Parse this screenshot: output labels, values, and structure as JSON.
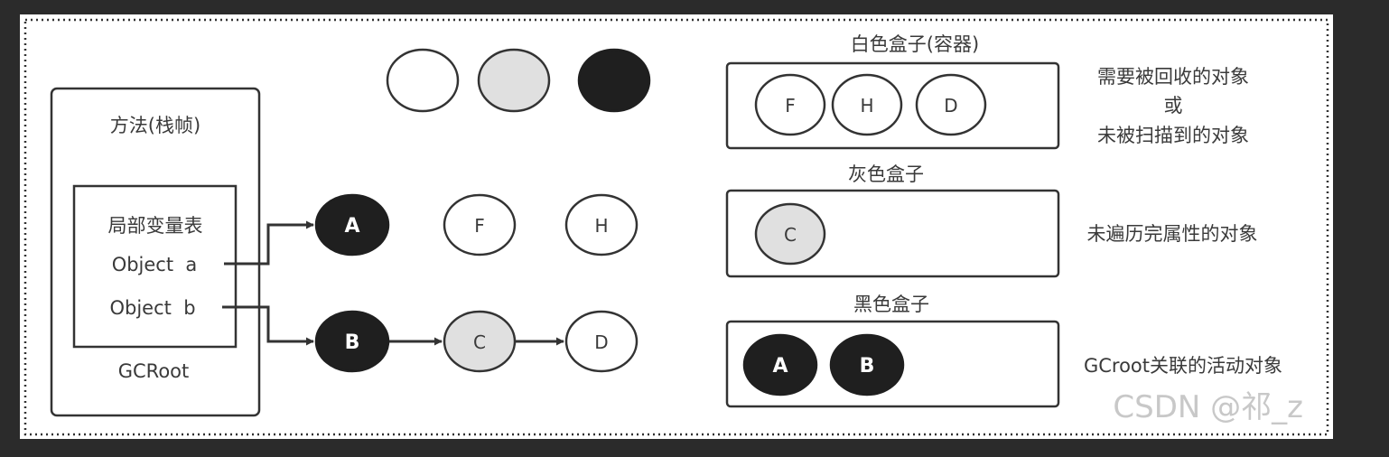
{
  "legend_circles": [
    "white",
    "gray",
    "black"
  ],
  "method_box": {
    "title": "方法(栈帧)",
    "local_table": {
      "title": "局部变量表",
      "entries": [
        "Object  a",
        "Object  b"
      ]
    },
    "footer": "GCRoot"
  },
  "nodes": {
    "A": "A",
    "B": "B",
    "C": "C",
    "D": "D",
    "F": "F",
    "H": "H"
  },
  "white_box": {
    "title": "白色盒子(容器)",
    "items": [
      "F",
      "H",
      "D"
    ],
    "description": [
      "需要被回收的对象",
      "或",
      "未被扫描到的对象"
    ]
  },
  "gray_box": {
    "title": "灰色盒子",
    "items": [
      "C"
    ],
    "description": "未遍历完属性的对象"
  },
  "black_box": {
    "title": "黑色盒子",
    "items": [
      "A",
      "B"
    ],
    "description": "GCroot关联的活动对象"
  },
  "watermark": "CSDN @祁_z",
  "colors": {
    "background": "#2b2b2b",
    "canvas": "#ffffff",
    "black_node": "#1f1f1f",
    "gray_node": "#e0e0e0",
    "white_node": "#ffffff",
    "stroke": "#333333"
  }
}
